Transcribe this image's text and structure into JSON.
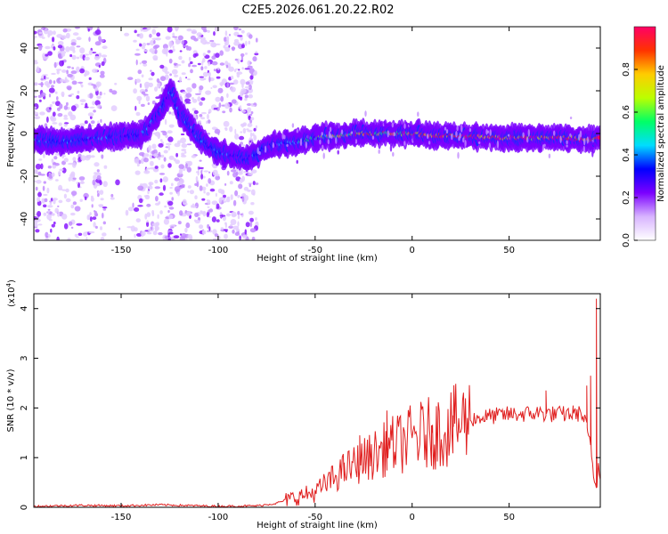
{
  "title": "C2E5.2026.061.20.22.R02",
  "chart_data": [
    {
      "type": "heatmap",
      "xlabel": "Height of straight line (km)",
      "ylabel": "Frequency (Hz)",
      "xlim": [
        -195,
        97
      ],
      "ylim": [
        -50,
        50
      ],
      "xticks": [
        -150,
        -100,
        -50,
        0,
        50
      ],
      "yticks": [
        -40,
        -20,
        0,
        20,
        40
      ],
      "noise_region_x": [
        -195,
        -80
      ],
      "noise_gap_x": [
        -158,
        -143
      ],
      "ridge": {
        "x": [
          -195,
          -180,
          -160,
          -148,
          -140,
          -135,
          -130,
          -127,
          -124,
          -120,
          -110,
          -100,
          -90,
          -85,
          -83,
          -80,
          -76,
          -70,
          -60,
          -50,
          -40,
          -30,
          -20,
          -10,
          0,
          10,
          20,
          40,
          60,
          80,
          90,
          97
        ],
        "y": [
          -3,
          -4,
          -2,
          -1,
          -1,
          4,
          10,
          16,
          20,
          10,
          -2,
          -9,
          -11,
          -12,
          -11,
          -10,
          -7,
          -5,
          -4,
          -2,
          -1,
          0,
          0,
          0,
          0,
          -1,
          -1,
          -2,
          -2,
          -2,
          -3,
          -2
        ]
      },
      "colorbar": {
        "label": "Normalized spectral amplitude",
        "ticks": [
          "0.0",
          "0.2",
          "0.4",
          "0.6",
          "0.8"
        ],
        "range": [
          0,
          1
        ],
        "colors": [
          "#ffffff",
          "#d8b4ff",
          "#7b00ff",
          "#0000ff",
          "#00ddff",
          "#00ff66",
          "#bbff00",
          "#ffcc00",
          "#ff3300",
          "#ff0066"
        ]
      }
    },
    {
      "type": "line",
      "xlabel": "Height of straight line (km)",
      "ylabel": "SNR (10 * v/v)",
      "scale_label": "(x10",
      "scale_exp": "4",
      "scale_close": ")",
      "xlim": [
        -195,
        97
      ],
      "ylim": [
        0,
        4.3
      ],
      "xticks": [
        -150,
        -100,
        -50,
        0,
        50
      ],
      "yticks": [
        0,
        1,
        2,
        3,
        4
      ],
      "color": "#e02020",
      "series": [
        {
          "x": [
            -195,
            -170,
            -150,
            -130,
            -100,
            -80,
            -70,
            -65,
            -60,
            -55,
            -50,
            -45,
            -40,
            -35,
            -30,
            -25,
            -20,
            -15,
            -10,
            -5,
            0,
            5,
            10,
            15,
            20,
            25,
            30,
            40,
            50,
            60,
            65,
            70,
            75,
            80,
            85,
            88,
            90,
            92,
            94,
            95,
            96,
            97
          ],
          "y": [
            0.02,
            0.04,
            0.03,
            0.05,
            0.02,
            0.03,
            0.08,
            0.15,
            0.2,
            0.25,
            0.3,
            0.45,
            0.6,
            0.75,
            0.85,
            0.95,
            1.05,
            1.15,
            1.25,
            1.3,
            1.4,
            1.45,
            1.5,
            1.55,
            1.6,
            1.7,
            1.78,
            1.83,
            1.87,
            1.88,
            1.9,
            1.88,
            1.87,
            1.88,
            1.9,
            1.85,
            1.6,
            1.2,
            0.5,
            0.4,
            0.9,
            0.6
          ],
          "spikes": [
            {
              "x": -35,
              "y": 0.9
            },
            {
              "x": -27,
              "y": 1.45
            },
            {
              "x": -13,
              "y": 1.95
            },
            {
              "x": 10,
              "y": 1.65
            },
            {
              "x": 21,
              "y": 1.85
            },
            {
              "x": 69,
              "y": 2.35
            },
            {
              "x": 83,
              "y": 2.0
            },
            {
              "x": 90,
              "y": 2.45
            },
            {
              "x": 92,
              "y": 2.65
            },
            {
              "x": 95,
              "y": 4.2
            },
            {
              "x": 97,
              "y": 2.8
            }
          ]
        }
      ]
    }
  ]
}
